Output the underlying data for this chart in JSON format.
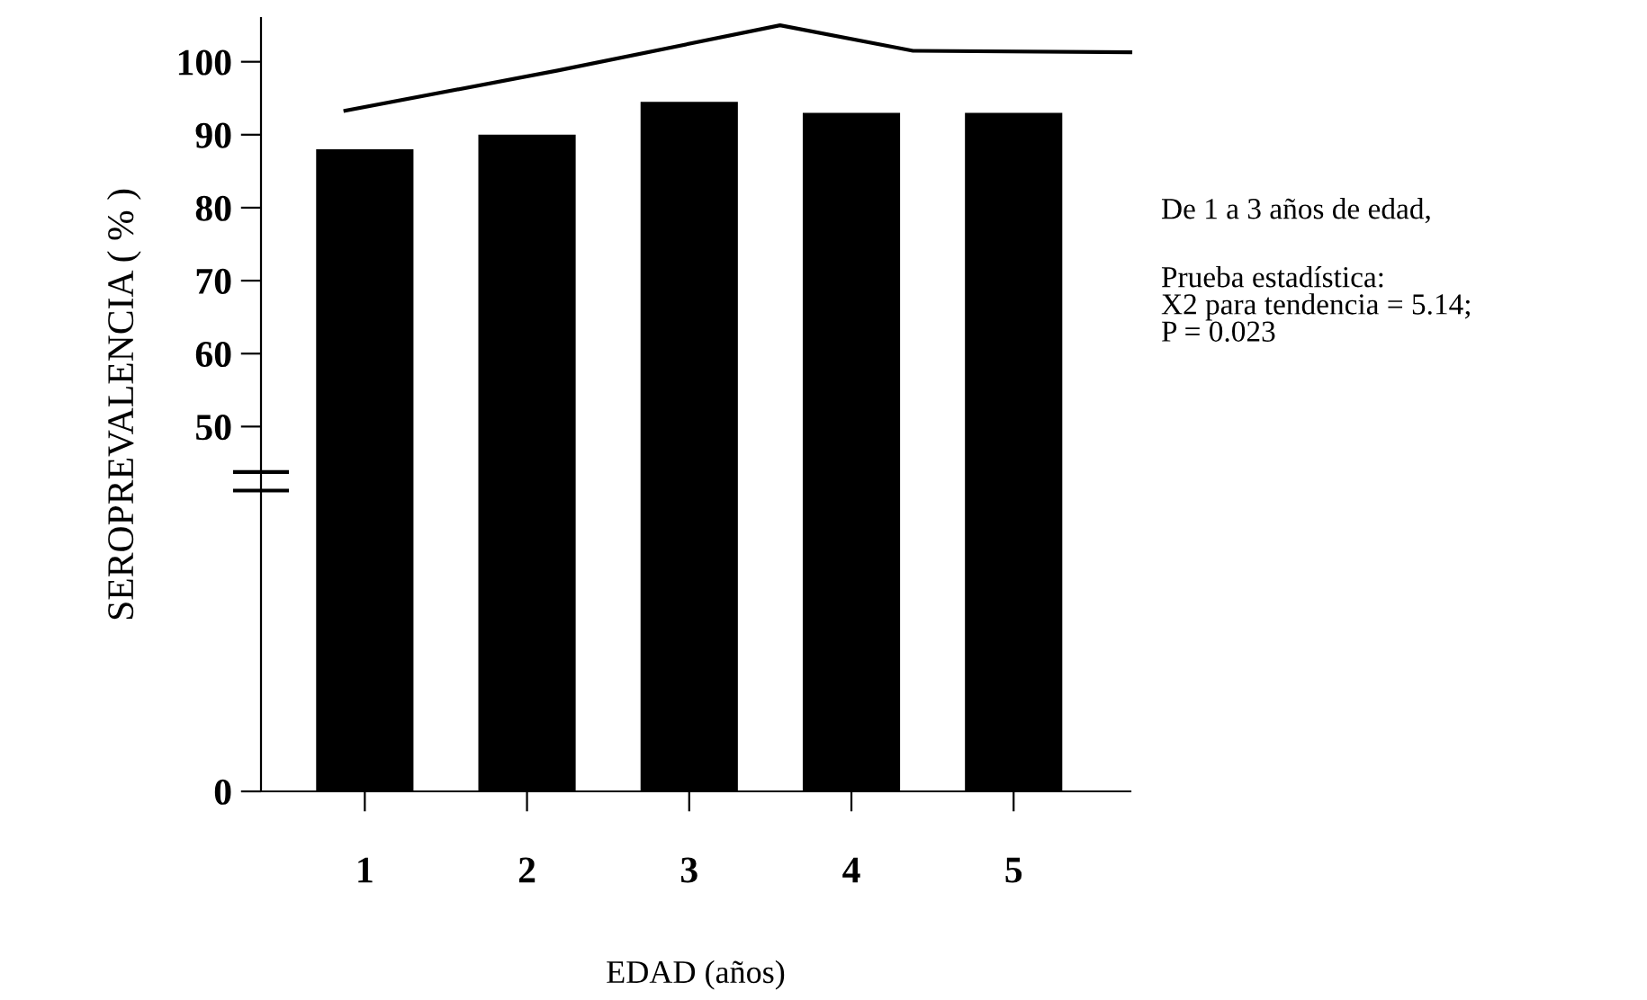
{
  "chart_data": {
    "type": "bar",
    "xlabel": "EDAD (años)",
    "ylabel": "SEROPREVALENCIA ( % )",
    "x": [
      1,
      2,
      3,
      4,
      5
    ],
    "xlim": [
      0.36,
      5.72
    ],
    "xticks": [
      1,
      2,
      3,
      4,
      5
    ],
    "ylim": [
      0,
      106
    ],
    "yticks": [
      0,
      50,
      60,
      70,
      80,
      90,
      100
    ],
    "series": [
      {
        "color": "#000000",
        "values": [
          88,
          90,
          94.5,
          93,
          93
        ]
      },
      {
        "type": "line",
        "color": "#000000",
        "x": [
          0.88,
          2.19,
          3.56,
          4.38,
          5.72
        ],
        "values": [
          93.3,
          98.8,
          105,
          101.5,
          101.3
        ]
      }
    ],
    "grid": false,
    "legend": false,
    "marker": "none",
    "line_style": "solid",
    "annotations": [
      "De 1 a 3 años de edad,",
      "Prueba estadística:\nX2 para tendencia = 5.14;\nP = 0.023"
    ]
  }
}
